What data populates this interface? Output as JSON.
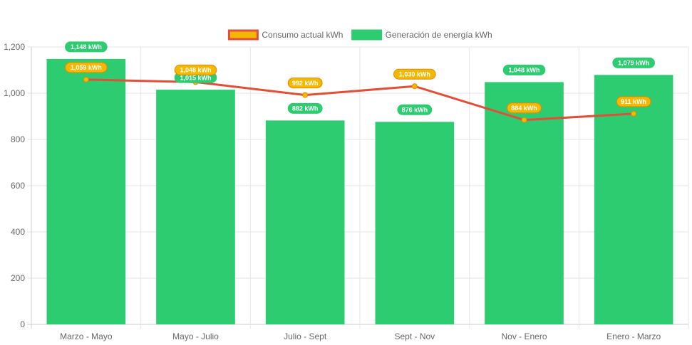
{
  "chart_data": {
    "type": "bar",
    "categories": [
      "Marzo - Mayo",
      "Mayo - Julio",
      "Julio - Sept",
      "Sept - Nov",
      "Nov - Enero",
      "Enero - Marzo"
    ],
    "series": [
      {
        "name": "Consumo actual kWh",
        "type": "line",
        "values": [
          1059,
          1048,
          992,
          1030,
          884,
          911
        ],
        "labels": [
          "1,059 kWh",
          "1,048 kWh",
          "992 kWh",
          "1,030 kWh",
          "884 kWh",
          "911 kWh"
        ],
        "color": "#e05038",
        "label_bg": "#f5b800",
        "label_border": "#e08a00"
      },
      {
        "name": "Generación de energía kWh",
        "type": "bar",
        "values": [
          1148,
          1015,
          882,
          876,
          1048,
          1079
        ],
        "labels": [
          "1,148 kWh",
          "1,015 kWh",
          "882 kWh",
          "876 kWh",
          "1,048 kWh",
          "1,079 kWh"
        ],
        "color": "#2ecc71",
        "label_bg": "#2ecc71"
      }
    ],
    "legend": {
      "placement": "top-center",
      "items": [
        {
          "label": "Consumo actual kWh",
          "fill": "#f5b800",
          "stroke": "#e05038"
        },
        {
          "label": "Generación de energía kWh",
          "fill": "#2ecc71",
          "stroke": "#2ecc71"
        }
      ]
    },
    "ylim": [
      0,
      1200
    ],
    "yticks": [
      0,
      200,
      400,
      600,
      800,
      1000,
      1200
    ],
    "ytick_labels": [
      "0",
      "200",
      "400",
      "600",
      "800",
      "1,000",
      "1,200"
    ],
    "grid": true,
    "title": "",
    "xlabel": "",
    "ylabel": ""
  }
}
